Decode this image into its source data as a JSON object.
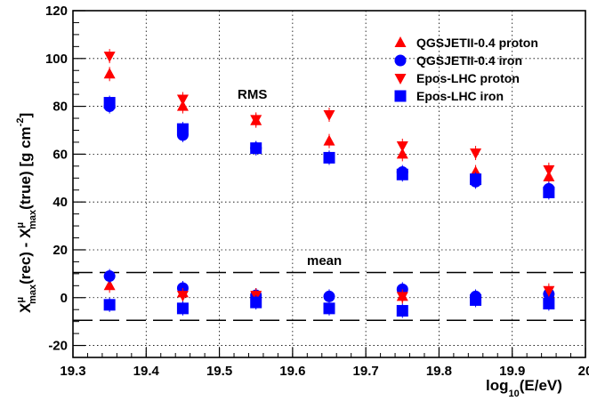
{
  "chart_data": {
    "type": "scatter",
    "title": "",
    "xlabel": "log10(E/eV)",
    "ylabel": "X^μ_max(rec) - X^μ_max(true) [g cm^-2]",
    "xlim": [
      19.3,
      20.0
    ],
    "ylim": [
      -25,
      120
    ],
    "grid": true,
    "legend_position": "top-right",
    "x_ticks": [
      "19.3",
      "19.4",
      "19.5",
      "19.6",
      "19.7",
      "19.8",
      "19.9",
      "20"
    ],
    "y_ticks": [
      "-20",
      "0",
      "20",
      "40",
      "60",
      "80",
      "100",
      "120"
    ],
    "x": [
      19.35,
      19.45,
      19.55,
      19.65,
      19.75,
      19.85,
      19.95
    ],
    "series": [
      {
        "name": "QGSJETII-0.4 proton",
        "marker": "triangle-up",
        "color": "#ff0000",
        "rms": [
          93.5,
          80,
          74,
          65.5,
          60,
          52.5,
          50.5
        ],
        "mean": [
          5,
          2,
          1,
          null,
          0.5,
          null,
          2
        ]
      },
      {
        "name": "QGSJETII-0.4 iron",
        "marker": "circle",
        "color": "#0000ff",
        "rms": [
          80,
          68,
          62.5,
          58.5,
          52.5,
          48.5,
          45.5
        ],
        "mean": [
          9,
          4,
          1,
          0.5,
          3.5,
          0.5,
          1.5
        ]
      },
      {
        "name": "Epos-LHC proton",
        "marker": "triangle-down",
        "color": "#ff0000",
        "rms": [
          101,
          83,
          74.5,
          76.5,
          63.5,
          60.5,
          53.5
        ],
        "mean": [
          null,
          1,
          1,
          null,
          0.5,
          null,
          3
        ]
      },
      {
        "name": "Epos-LHC iron",
        "marker": "square",
        "color": "#0000ff",
        "rms": [
          81.5,
          70.5,
          62.5,
          58.5,
          51.5,
          49.5,
          44
        ],
        "mean": [
          -3,
          -4.5,
          -2,
          -4.5,
          -5.5,
          -1,
          -2.5
        ]
      }
    ],
    "reference_lines": [
      10.5,
      -9.5
    ],
    "annotations": [
      "RMS",
      "mean"
    ]
  }
}
